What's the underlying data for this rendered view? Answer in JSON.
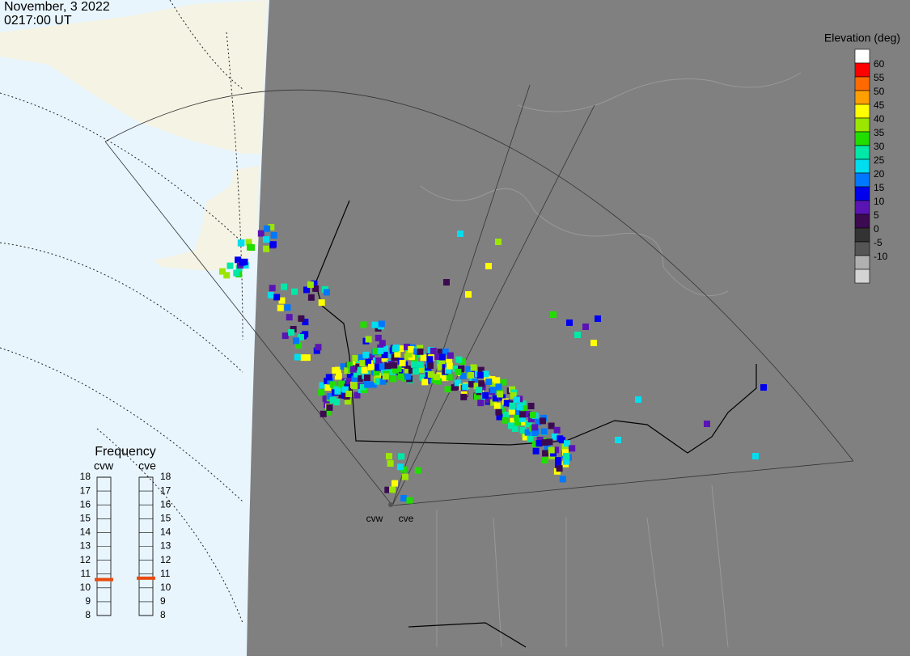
{
  "header": {
    "date": "November, 3 2022",
    "time": "0217:00 UT"
  },
  "elevation_legend": {
    "title": "Elevation (deg)",
    "ticks": [
      60,
      55,
      50,
      45,
      40,
      35,
      30,
      25,
      20,
      15,
      10,
      5,
      0,
      -5,
      -10
    ],
    "colors": [
      "#ffffff",
      "#ff0000",
      "#ff6a00",
      "#ff9f00",
      "#ffff00",
      "#9be600",
      "#22dd00",
      "#00e8a8",
      "#00ddee",
      "#0077ff",
      "#0000ee",
      "#5a14b4",
      "#3c0a50",
      "#333333",
      "#555555",
      "#b0b0b0",
      "#d4d4d4"
    ]
  },
  "frequency": {
    "title": "Frequency",
    "radars": [
      "cvw",
      "cve"
    ],
    "ticks": [
      18,
      17,
      16,
      15,
      14,
      13,
      12,
      11,
      10,
      9,
      8
    ],
    "values": [
      10.6,
      10.7
    ],
    "marker_color": "#e84a10"
  },
  "sites": [
    "cvw",
    "cve"
  ]
}
